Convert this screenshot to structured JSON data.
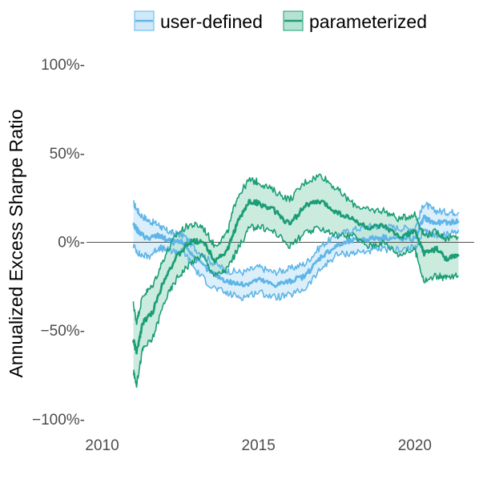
{
  "chart_data": {
    "type": "line",
    "title": "",
    "xlabel": "",
    "ylabel": "Annualized Excess Sharpe Ratio",
    "xlim": [
      2009.5,
      2021.9
    ],
    "ylim": [
      -1.05,
      1.05
    ],
    "x_ticks": [
      2010,
      2015,
      2020
    ],
    "x_tick_labels": [
      "2010",
      "2015",
      "2020"
    ],
    "y_ticks": [
      -1.0,
      -0.5,
      0.0,
      0.5,
      1.0
    ],
    "y_tick_labels": [
      "−100%-",
      "−50%-",
      "0%-",
      "50%-",
      "100%-"
    ],
    "reference_line_y": 0,
    "grid": false,
    "legend_position": "top",
    "series": [
      {
        "name": "user-defined",
        "color": "#5fb5e8",
        "fill": "#cfe9f9",
        "x": [
          2011.0,
          2011.2,
          2011.5,
          2011.8,
          2012.0,
          2012.3,
          2012.6,
          2013.0,
          2013.5,
          2014.0,
          2014.5,
          2015.0,
          2015.5,
          2016.0,
          2016.5,
          2017.0,
          2017.5,
          2018.0,
          2018.5,
          2019.0,
          2019.5,
          2020.0,
          2020.3,
          2020.6,
          2021.0,
          2021.4
        ],
        "mid": [
          0.1,
          0.05,
          0.02,
          0.04,
          0.02,
          0.0,
          0.0,
          -0.1,
          -0.17,
          -0.22,
          -0.24,
          -0.21,
          -0.24,
          -0.22,
          -0.19,
          -0.08,
          -0.02,
          0.01,
          0.02,
          0.03,
          0.02,
          0.02,
          0.14,
          0.11,
          0.11,
          0.12
        ],
        "upper": [
          0.22,
          0.16,
          0.12,
          0.1,
          0.07,
          0.05,
          0.04,
          -0.04,
          -0.11,
          -0.16,
          -0.17,
          -0.14,
          -0.17,
          -0.15,
          -0.12,
          -0.02,
          0.04,
          0.07,
          0.09,
          0.09,
          0.08,
          0.08,
          0.22,
          0.18,
          0.17,
          0.17
        ],
        "lower": [
          -0.02,
          -0.07,
          -0.08,
          -0.03,
          -0.04,
          -0.05,
          -0.05,
          -0.16,
          -0.25,
          -0.29,
          -0.31,
          -0.28,
          -0.31,
          -0.3,
          -0.26,
          -0.15,
          -0.07,
          -0.06,
          -0.05,
          -0.04,
          -0.04,
          -0.03,
          0.06,
          0.04,
          0.04,
          0.07
        ]
      },
      {
        "name": "parameterized",
        "color": "#1b9e77",
        "fill": "#b6e3d1",
        "x": [
          2011.0,
          2011.1,
          2011.3,
          2011.6,
          2012.0,
          2012.4,
          2012.8,
          2013.2,
          2013.6,
          2014.0,
          2014.3,
          2014.7,
          2015.0,
          2015.5,
          2016.0,
          2016.5,
          2017.0,
          2017.5,
          2018.0,
          2018.5,
          2019.0,
          2019.5,
          2020.0,
          2020.3,
          2020.7,
          2021.0,
          2021.4
        ],
        "mid": [
          -0.55,
          -0.62,
          -0.45,
          -0.4,
          -0.2,
          -0.08,
          0.0,
          0.01,
          -0.1,
          -0.05,
          0.1,
          0.23,
          0.22,
          0.18,
          0.1,
          0.21,
          0.23,
          0.17,
          0.13,
          0.08,
          0.09,
          0.03,
          0.06,
          -0.06,
          -0.04,
          -0.09,
          -0.08
        ],
        "upper": [
          -0.35,
          -0.45,
          -0.3,
          -0.25,
          -0.08,
          0.05,
          0.1,
          0.09,
          -0.02,
          0.05,
          0.25,
          0.35,
          0.34,
          0.29,
          0.24,
          0.34,
          0.38,
          0.3,
          0.22,
          0.18,
          0.18,
          0.13,
          0.16,
          0.04,
          0.06,
          0.02,
          0.03
        ],
        "lower": [
          -0.73,
          -0.8,
          -0.6,
          -0.55,
          -0.33,
          -0.2,
          -0.12,
          -0.07,
          -0.19,
          -0.15,
          -0.05,
          0.08,
          0.09,
          0.06,
          -0.02,
          0.05,
          0.08,
          0.04,
          0.04,
          -0.02,
          0.0,
          -0.07,
          -0.04,
          -0.22,
          -0.19,
          -0.2,
          -0.19
        ]
      }
    ]
  }
}
